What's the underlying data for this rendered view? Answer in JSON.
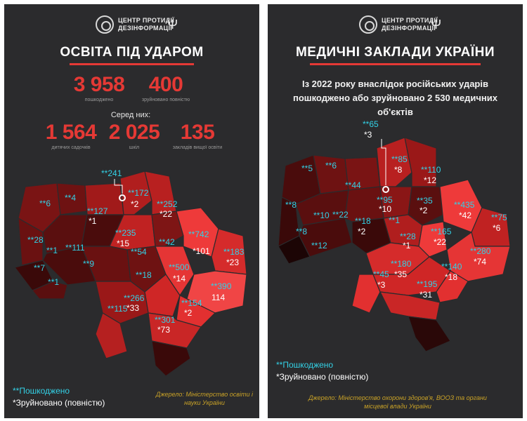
{
  "org": {
    "line1": "ЦЕНТР ПРОТИДІЇ",
    "line2": "ДЕЗІНФОРМАЦІЇ",
    "logo_icon": "cpd-circle-icon",
    "emblem_icon": "trident-icon"
  },
  "left": {
    "title": "ОСВІТА ПІД УДАРОМ",
    "damaged_total": "3 958",
    "damaged_label": "пошкоджено",
    "destroyed_total": "400",
    "destroyed_label": "зруйновано повністю",
    "among_label": "Серед них:",
    "kindergartens": "1 564",
    "kindergartens_label": "дитячих садочків",
    "schools": "2 025",
    "schools_label": "шкіл",
    "universities": "135",
    "universities_label": "закладів вищої освіти",
    "regions": [
      {
        "dmg": "**6"
      },
      {
        "dmg": "**4"
      },
      {
        "dmg": "**127",
        "des": "*1"
      },
      {
        "dmg": "**241"
      },
      {
        "dmg": "**172",
        "des": "*2"
      },
      {
        "dmg": "**252",
        "des": "*22"
      },
      {
        "dmg": "**28"
      },
      {
        "dmg": "**235",
        "des": "*15"
      },
      {
        "dmg": "**1"
      },
      {
        "dmg": "**111"
      },
      {
        "dmg": "**42"
      },
      {
        "dmg": "**742",
        "des": "*101"
      },
      {
        "dmg": "**183",
        "des": "*23"
      },
      {
        "dmg": "**54"
      },
      {
        "dmg": "**9"
      },
      {
        "dmg": "**7"
      },
      {
        "dmg": "**1"
      },
      {
        "dmg": "**18"
      },
      {
        "dmg": "**500",
        "des": "*14"
      },
      {
        "dmg": "**390",
        "des": "114"
      },
      {
        "dmg": "**266",
        "des": "*33"
      },
      {
        "dmg": "**115"
      },
      {
        "dmg": "**154",
        "des": "*2"
      },
      {
        "dmg": "**301",
        "des": "*73"
      }
    ],
    "legend_damaged": "**Пошкоджено",
    "legend_destroyed": "*Зруйновано (повністю)",
    "source": "Джерело: Міністерство освіти і науки України"
  },
  "right": {
    "title": "МЕДИЧНІ ЗАКЛАДИ УКРАЇНИ",
    "subtitle": "Із 2022 року внаслідок російських ударів пошкоджено або зруйновано 2 530 медичних об'єктів",
    "regions": [
      {
        "dmg": "**65",
        "des": "*3"
      },
      {
        "dmg": "**5"
      },
      {
        "dmg": "**6"
      },
      {
        "dmg": "**85",
        "des": "*8"
      },
      {
        "dmg": "**110",
        "des": "*12"
      },
      {
        "dmg": "**44"
      },
      {
        "dmg": "**95",
        "des": "*10"
      },
      {
        "dmg": "**8"
      },
      {
        "dmg": "**10"
      },
      {
        "dmg": "**22"
      },
      {
        "dmg": "**18",
        "des": "*2"
      },
      {
        "dmg": "**35",
        "des": "*2"
      },
      {
        "dmg": "**435",
        "des": "*42"
      },
      {
        "dmg": "**75",
        "des": "*6"
      },
      {
        "dmg": "**8"
      },
      {
        "dmg": "**12"
      },
      {
        "dmg": "**1"
      },
      {
        "dmg": "**165",
        "des": "*22"
      },
      {
        "dmg": "**28",
        "des": "*1"
      },
      {
        "dmg": "**280",
        "des": "*74"
      },
      {
        "dmg": "**180",
        "des": "*35"
      },
      {
        "dmg": "**45",
        "des": "*3"
      },
      {
        "dmg": "**140",
        "des": "*18"
      },
      {
        "dmg": "**195",
        "des": "*31"
      }
    ],
    "legend_damaged": "**Пошкоджено",
    "legend_destroyed": "*Зруйновано (повністю)",
    "source": "Джерело: Міністерство охорони здоров'я, ВООЗ та органи місцевої влади України"
  },
  "colors": {
    "accent": "#e53935",
    "damaged": "#33d1e6",
    "destroyed": "#ffffff",
    "source": "#c9a227",
    "background": "#2b2b2d"
  }
}
